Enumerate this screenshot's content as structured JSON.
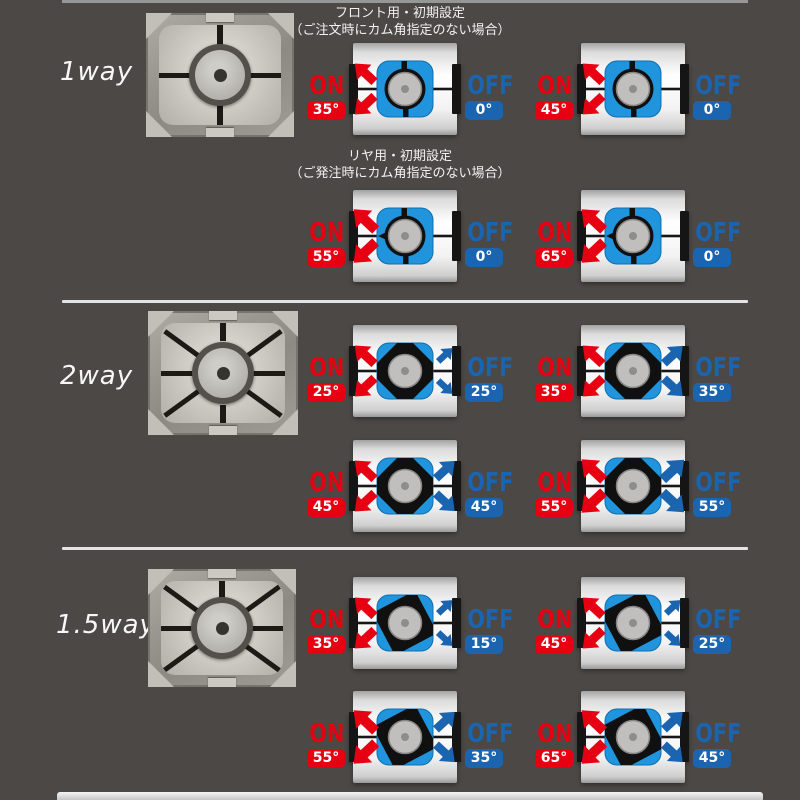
{
  "page": {
    "bg_color": "#4b4845",
    "divider_color": "#e3e3e3",
    "accent_red": "#e60012",
    "accent_blue": "#1a64b0",
    "cam_blue": "#2094dc"
  },
  "headers": {
    "front": {
      "title": "フロント用・初期設定",
      "subtitle": "（ご注文時にカム角指定のない場合）"
    },
    "rear": {
      "title": "リヤ用・初期設定",
      "subtitle": "（ご発注時にカム角指定のない場合）"
    }
  },
  "sections": [
    {
      "label": "1way",
      "diagrams": [
        {
          "on_label": "ON",
          "on_angle": "35°",
          "off_label": "OFF",
          "off_angle": "0°"
        },
        {
          "on_label": "ON",
          "on_angle": "45°",
          "off_label": "OFF",
          "off_angle": "0°"
        },
        {
          "on_label": "ON",
          "on_angle": "55°",
          "off_label": "OFF",
          "off_angle": "0°"
        },
        {
          "on_label": "ON",
          "on_angle": "65°",
          "off_label": "OFF",
          "off_angle": "0°"
        }
      ]
    },
    {
      "label": "2way",
      "diagrams": [
        {
          "on_label": "ON",
          "on_angle": "25°",
          "off_label": "OFF",
          "off_angle": "25°"
        },
        {
          "on_label": "ON",
          "on_angle": "35°",
          "off_label": "OFF",
          "off_angle": "35°"
        },
        {
          "on_label": "ON",
          "on_angle": "45°",
          "off_label": "OFF",
          "off_angle": "45°"
        },
        {
          "on_label": "ON",
          "on_angle": "55°",
          "off_label": "OFF",
          "off_angle": "55°"
        }
      ]
    },
    {
      "label": "1.5way",
      "diagrams": [
        {
          "on_label": "ON",
          "on_angle": "35°",
          "off_label": "OFF",
          "off_angle": "15°"
        },
        {
          "on_label": "ON",
          "on_angle": "45°",
          "off_label": "OFF",
          "off_angle": "25°"
        },
        {
          "on_label": "ON",
          "on_angle": "55°",
          "off_label": "OFF",
          "off_angle": "35°"
        },
        {
          "on_label": "ON",
          "on_angle": "65°",
          "off_label": "OFF",
          "off_angle": "45°"
        }
      ]
    }
  ]
}
